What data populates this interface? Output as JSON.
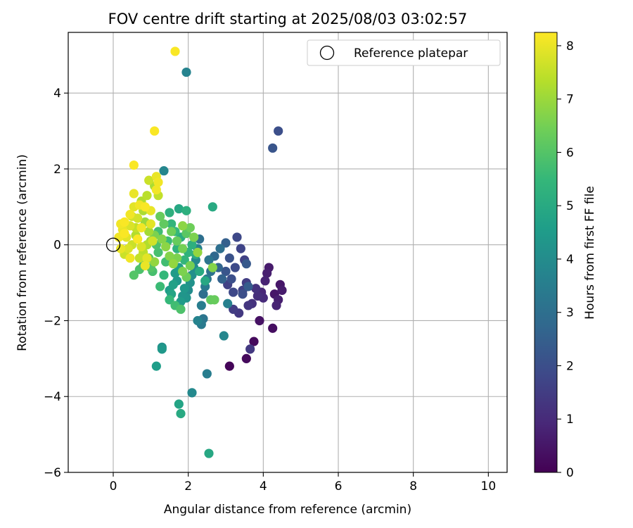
{
  "chart_data": {
    "type": "scatter",
    "title": "FOV centre drift starting at 2025/08/03 03:02:57",
    "xlabel": "Angular distance from reference (arcmin)",
    "ylabel": "Rotation from reference (arcmin)",
    "xlim": [
      -1.2,
      10.5
    ],
    "ylim": [
      -6,
      5.6
    ],
    "xticks": [
      "0",
      "2",
      "4",
      "6",
      "8",
      "10"
    ],
    "yticks": [
      "−6",
      "−4",
      "−2",
      "0",
      "2",
      "4"
    ],
    "grid": true,
    "legend": {
      "position": "top-right",
      "entries": [
        "Reference platepar"
      ]
    },
    "reference_point": {
      "x": 0.0,
      "y": 0.0
    },
    "colorbar": {
      "label": "Hours from first FF file",
      "range": [
        0,
        8.25
      ],
      "ticks": [
        "0",
        "1",
        "2",
        "3",
        "4",
        "5",
        "6",
        "7",
        "8"
      ],
      "colormap": [
        "#440154",
        "#482878",
        "#3e4989",
        "#31688e",
        "#26828e",
        "#1f9e89",
        "#35b779",
        "#6ece58",
        "#b5de2b",
        "#fde725"
      ]
    },
    "points": [
      [
        3.1,
        -3.2,
        0.1
      ],
      [
        3.55,
        -3.0,
        0.2
      ],
      [
        3.75,
        -2.55,
        0.2
      ],
      [
        4.25,
        -2.2,
        0.3
      ],
      [
        3.9,
        -2.0,
        0.4
      ],
      [
        4.45,
        -1.05,
        0.5
      ],
      [
        4.5,
        -1.2,
        0.6
      ],
      [
        4.4,
        -1.45,
        0.7
      ],
      [
        4.35,
        -1.6,
        0.8
      ],
      [
        4.3,
        -1.3,
        0.5
      ],
      [
        4.15,
        -0.6,
        0.6
      ],
      [
        4.1,
        -0.75,
        0.7
      ],
      [
        4.05,
        -0.95,
        0.8
      ],
      [
        3.95,
        -1.25,
        0.9
      ],
      [
        4.0,
        -1.4,
        1.0
      ],
      [
        3.85,
        -1.35,
        1.1
      ],
      [
        3.8,
        -1.15,
        1.2
      ],
      [
        3.7,
        -1.55,
        1.2
      ],
      [
        3.6,
        -1.6,
        1.3
      ],
      [
        3.65,
        -2.75,
        1.4
      ],
      [
        3.55,
        -1.0,
        1.5
      ],
      [
        3.45,
        -1.2,
        1.6
      ],
      [
        3.35,
        -1.8,
        1.4
      ],
      [
        3.2,
        -1.7,
        1.5
      ],
      [
        3.5,
        -0.4,
        1.6
      ],
      [
        3.4,
        -0.1,
        1.7
      ],
      [
        3.3,
        0.2,
        1.8
      ],
      [
        3.25,
        -0.6,
        1.9
      ],
      [
        3.15,
        -0.9,
        2.0
      ],
      [
        3.05,
        -1.05,
        1.6
      ],
      [
        3.2,
        -1.25,
        1.8
      ],
      [
        3.1,
        -0.35,
        2.1
      ],
      [
        3.0,
        -0.7,
        2.2
      ],
      [
        3.55,
        -0.5,
        2.3
      ],
      [
        3.45,
        -1.3,
        2.0
      ],
      [
        3.6,
        -1.1,
        2.4
      ],
      [
        3.0,
        0.05,
        2.5
      ],
      [
        2.9,
        -0.9,
        2.6
      ],
      [
        4.25,
        2.55,
        2.2
      ],
      [
        4.4,
        3.0,
        2.0
      ],
      [
        2.8,
        -0.6,
        2.7
      ],
      [
        2.7,
        -0.3,
        2.8
      ],
      [
        2.85,
        -0.1,
        3.0
      ],
      [
        2.6,
        -0.7,
        3.1
      ],
      [
        2.55,
        -0.4,
        3.2
      ],
      [
        2.5,
        -0.9,
        3.3
      ],
      [
        2.45,
        -1.1,
        3.4
      ],
      [
        2.4,
        -1.3,
        3.0
      ],
      [
        2.35,
        -1.6,
        3.5
      ],
      [
        2.4,
        -1.95,
        3.2
      ],
      [
        2.25,
        -2.0,
        3.7
      ],
      [
        2.35,
        -2.1,
        3.4
      ],
      [
        3.05,
        -1.55,
        3.6
      ],
      [
        2.5,
        -3.4,
        3.5
      ],
      [
        2.95,
        -2.4,
        3.8
      ],
      [
        2.1,
        -3.9,
        3.9
      ],
      [
        2.3,
        0.15,
        3.0
      ],
      [
        2.25,
        -0.1,
        3.6
      ],
      [
        2.2,
        -0.4,
        3.9
      ],
      [
        2.15,
        -0.6,
        4.0
      ],
      [
        2.1,
        -0.8,
        4.1
      ],
      [
        2.05,
        -1.0,
        4.2
      ],
      [
        2.0,
        -1.2,
        4.0
      ],
      [
        1.95,
        -1.4,
        4.3
      ],
      [
        1.9,
        -1.15,
        4.4
      ],
      [
        1.85,
        -1.35,
        4.3
      ],
      [
        1.8,
        -1.5,
        4.5
      ],
      [
        1.7,
        -0.95,
        4.4
      ],
      [
        1.75,
        -0.6,
        4.6
      ],
      [
        1.65,
        -0.75,
        4.5
      ],
      [
        1.6,
        -1.05,
        4.7
      ],
      [
        1.55,
        -1.3,
        4.8
      ],
      [
        1.5,
        -1.2,
        4.6
      ],
      [
        1.3,
        -2.7,
        4.2
      ],
      [
        1.3,
        -2.75,
        4.4
      ],
      [
        1.15,
        -3.2,
        4.6
      ],
      [
        1.75,
        -4.2,
        4.8
      ],
      [
        1.8,
        -4.45,
        5.0
      ],
      [
        2.55,
        -5.5,
        4.9
      ],
      [
        1.95,
        4.55,
        3.7
      ],
      [
        1.35,
        1.95,
        3.8
      ],
      [
        1.75,
        0.95,
        4.9
      ],
      [
        1.95,
        0.9,
        5.2
      ],
      [
        2.65,
        1.0,
        5.0
      ],
      [
        2.45,
        -0.95,
        4.9
      ],
      [
        2.3,
        -0.7,
        5.0
      ],
      [
        2.2,
        -0.25,
        5.1
      ],
      [
        2.1,
        0.0,
        5.2
      ],
      [
        2.0,
        -0.2,
        5.3
      ],
      [
        1.9,
        -0.4,
        5.4
      ],
      [
        1.8,
        0.2,
        5.1
      ],
      [
        1.7,
        -0.1,
        5.3
      ],
      [
        1.65,
        0.35,
        5.5
      ],
      [
        1.55,
        0.55,
        5.4
      ],
      [
        1.5,
        0.85,
        5.2
      ],
      [
        1.45,
        0.1,
        5.6
      ],
      [
        1.4,
        -0.45,
        5.7
      ],
      [
        1.35,
        -0.8,
        5.5
      ],
      [
        1.25,
        -1.1,
        5.6
      ],
      [
        1.2,
        -0.2,
        5.8
      ],
      [
        1.15,
        0.0,
        5.9
      ],
      [
        1.2,
        0.35,
        5.7
      ],
      [
        1.05,
        -0.7,
        5.8
      ],
      [
        1.0,
        -0.6,
        6.0
      ],
      [
        0.95,
        -0.35,
        6.1
      ],
      [
        0.8,
        -0.55,
        5.6
      ],
      [
        0.7,
        -0.65,
        5.9
      ],
      [
        0.55,
        -0.8,
        6.0
      ],
      [
        1.5,
        -1.45,
        5.5
      ],
      [
        1.65,
        -1.6,
        5.7
      ],
      [
        1.8,
        -1.7,
        5.9
      ],
      [
        2.6,
        -1.45,
        6.2
      ],
      [
        1.25,
        0.75,
        6.3
      ],
      [
        1.35,
        0.55,
        6.2
      ],
      [
        1.55,
        0.35,
        6.4
      ],
      [
        1.7,
        0.1,
        6.3
      ],
      [
        1.85,
        -0.1,
        6.5
      ],
      [
        1.95,
        0.3,
        6.1
      ],
      [
        2.05,
        0.45,
        6.4
      ],
      [
        2.15,
        0.2,
        6.6
      ],
      [
        2.05,
        -0.55,
        6.5
      ],
      [
        1.95,
        -0.85,
        6.4
      ],
      [
        1.85,
        -0.7,
        6.6
      ],
      [
        1.1,
        0.25,
        6.6
      ],
      [
        1.3,
        0.15,
        6.7
      ],
      [
        1.4,
        -0.05,
        6.8
      ],
      [
        1.5,
        -0.3,
        6.7
      ],
      [
        1.6,
        -0.5,
        6.9
      ],
      [
        1.7,
        -0.35,
        6.6
      ],
      [
        1.85,
        0.5,
        6.8
      ],
      [
        2.25,
        -0.2,
        6.9
      ],
      [
        2.65,
        -0.6,
        6.7
      ],
      [
        2.7,
        -1.45,
        6.3
      ],
      [
        1.1,
        -0.45,
        6.9
      ],
      [
        1.0,
        0.1,
        7.0
      ],
      [
        0.95,
        0.35,
        7.1
      ],
      [
        0.85,
        0.6,
        7.0
      ],
      [
        0.8,
        0.9,
        7.2
      ],
      [
        0.75,
        1.15,
        7.3
      ],
      [
        0.9,
        1.3,
        7.4
      ],
      [
        0.95,
        1.7,
        7.6
      ],
      [
        1.1,
        1.55,
        7.2
      ],
      [
        1.2,
        1.3,
        7.5
      ],
      [
        0.9,
        0.0,
        7.3
      ],
      [
        0.8,
        -0.2,
        7.4
      ],
      [
        0.7,
        -0.35,
        7.5
      ],
      [
        0.6,
        0.25,
        7.3
      ],
      [
        0.5,
        0.0,
        7.6
      ],
      [
        0.45,
        0.5,
        7.8
      ],
      [
        0.5,
        0.75,
        7.7
      ],
      [
        0.55,
        1.0,
        7.9
      ],
      [
        0.6,
        0.45,
        7.5
      ],
      [
        0.4,
        -0.1,
        7.8
      ],
      [
        0.35,
        0.2,
        7.9
      ],
      [
        0.3,
        -0.25,
        7.6
      ],
      [
        0.2,
        -0.1,
        8.0
      ],
      [
        0.15,
        0.2,
        8.1
      ],
      [
        0.25,
        0.4,
        8.0
      ],
      [
        0.3,
        0.6,
        8.2
      ],
      [
        0.45,
        0.8,
        8.1
      ],
      [
        0.55,
        1.35,
        8.0
      ],
      [
        0.7,
        1.05,
        8.1
      ],
      [
        0.85,
        1.0,
        8.2
      ],
      [
        1.0,
        0.9,
        8.0
      ],
      [
        1.0,
        0.55,
        7.9
      ],
      [
        0.75,
        0.45,
        8.1
      ],
      [
        0.65,
        0.15,
        8.2
      ],
      [
        0.85,
        -0.55,
        8.0
      ],
      [
        0.45,
        -0.35,
        8.1
      ],
      [
        0.55,
        2.1,
        8.2
      ],
      [
        1.15,
        1.8,
        8.0
      ],
      [
        1.2,
        1.65,
        8.1
      ],
      [
        1.15,
        1.45,
        8.1
      ],
      [
        1.1,
        3.0,
        8.2
      ],
      [
        1.65,
        5.1,
        8.2
      ],
      [
        0.2,
        0.55,
        8.1
      ],
      [
        0.3,
        0.3,
        8.2
      ],
      [
        0.9,
        -0.35,
        7.9
      ],
      [
        1.05,
        0.1,
        7.7
      ],
      [
        0.75,
        -0.05,
        7.8
      ],
      [
        0.65,
        0.7,
        7.7
      ]
    ]
  }
}
